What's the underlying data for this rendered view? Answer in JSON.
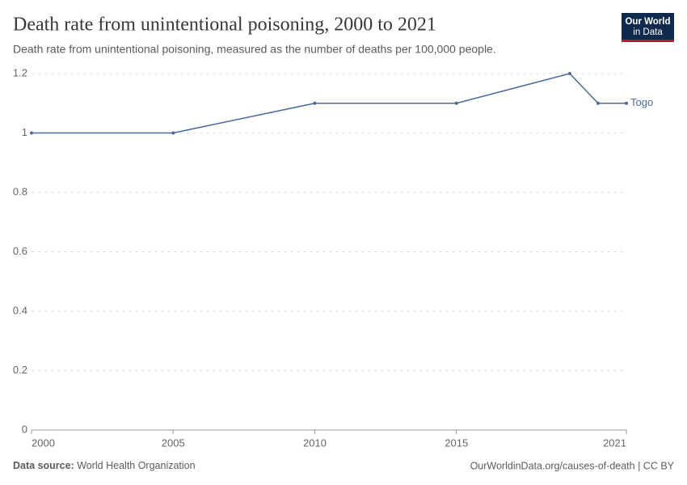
{
  "chart_data": {
    "type": "line",
    "title": "Death rate from unintentional poisoning, 2000 to 2021",
    "subtitle": "Death rate from unintentional poisoning, measured as the number of deaths per 100,000 people.",
    "x": [
      2000,
      2005,
      2010,
      2015,
      2019,
      2020,
      2021
    ],
    "series": [
      {
        "name": "Togo",
        "color": "#4c6a9c",
        "values": [
          1,
          1,
          1.1,
          1.1,
          1.2,
          1.1,
          1.1
        ]
      }
    ],
    "xlim": [
      2000,
      2021
    ],
    "xticks": [
      2000,
      2005,
      2010,
      2015,
      2021
    ],
    "ylim": [
      0,
      1.2
    ],
    "yticks": [
      0,
      0.2,
      0.4,
      0.6,
      0.8,
      1,
      1.2
    ],
    "grid": true
  },
  "logo": [
    "Our World",
    "in Data"
  ],
  "source": {
    "label": "Data source:",
    "text": "World Health Organization"
  },
  "url": "OurWorldinData.org/causes-of-death | CC BY"
}
